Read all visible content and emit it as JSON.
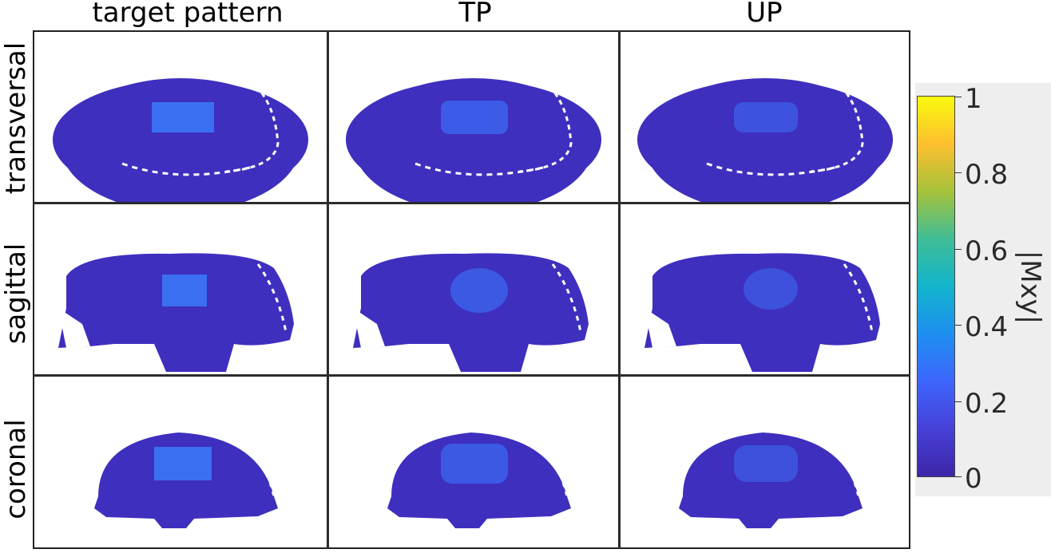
{
  "columns": [
    "target pattern",
    "TP",
    "UP"
  ],
  "rows": [
    "transversal",
    "sagittal",
    "coronal"
  ],
  "colorbar": {
    "title": "|Mxy|",
    "ticks": [
      "1",
      "0.8",
      "0.6",
      "0.4",
      "0.2",
      "0"
    ],
    "colors": [
      "#f9fb0e",
      "#fdbf2f",
      "#a6c23b",
      "#3fbd96",
      "#12b4cc",
      "#1e8ff0",
      "#3d66fc",
      "#4740d8",
      "#3d26a8"
    ]
  },
  "colors": {
    "background_tissue": "#3e2fbe",
    "target_region": "#3b6ff2",
    "target_region_soft": "#3c5ee8",
    "border": "#2b2b2b"
  }
}
